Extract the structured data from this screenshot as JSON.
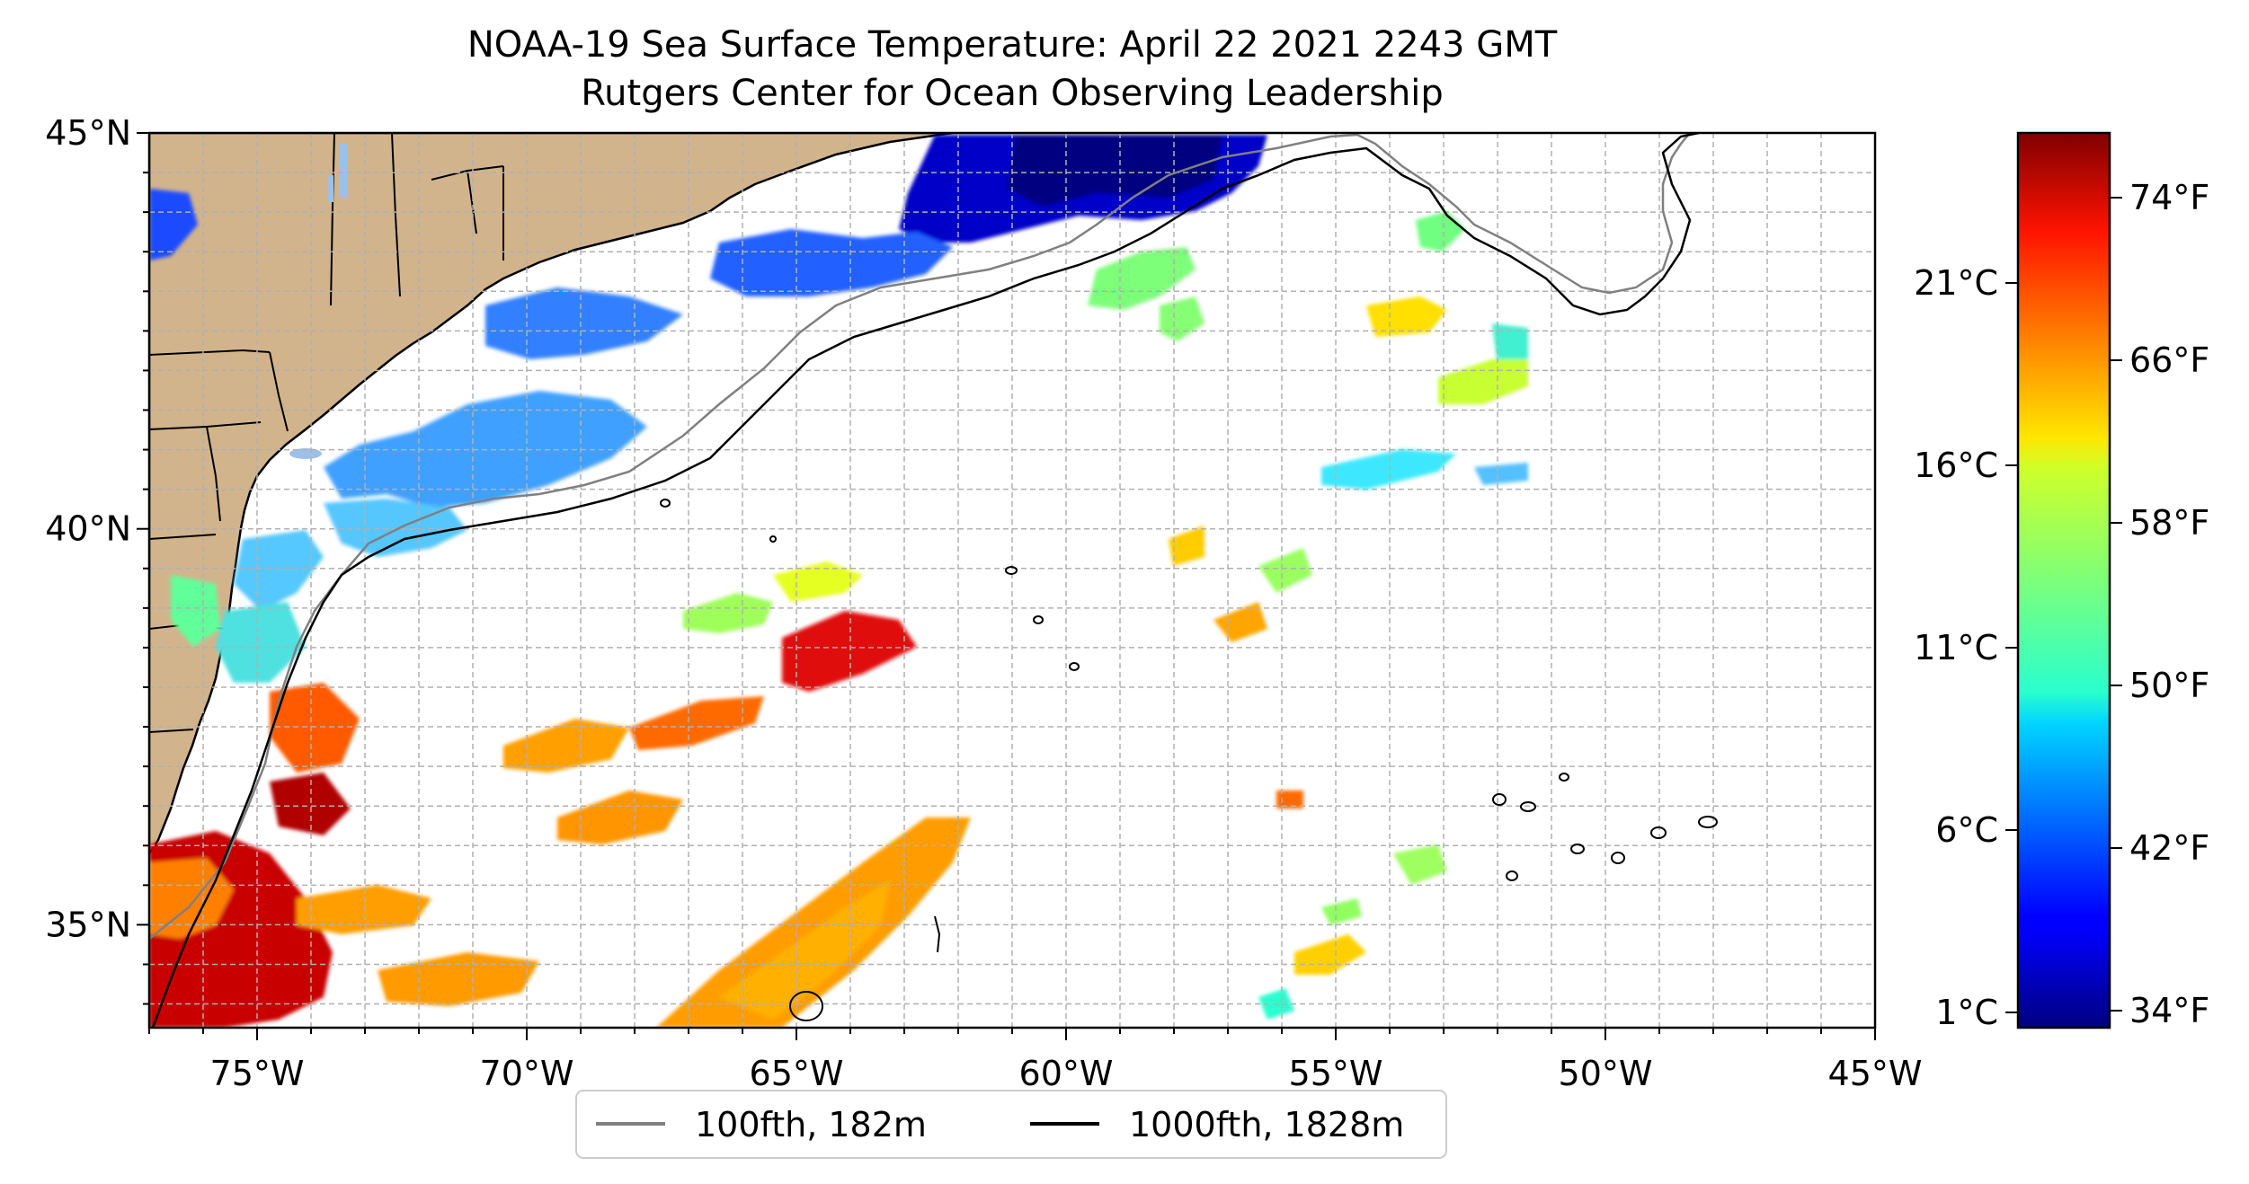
{
  "title": "NOAA-19 Sea Surface Temperature: April 22 2021 2243 GMT",
  "subtitle": "Rutgers Center for Ocean Observing Leadership",
  "map": {
    "lon_range": [
      -77,
      -45
    ],
    "lat_range": [
      33.7,
      45
    ],
    "lon_ticks": [
      "75°W",
      "70°W",
      "65°W",
      "60°W",
      "55°W",
      "50°W",
      "45°W"
    ],
    "lat_ticks": [
      "45°N",
      "40°N",
      "35°N"
    ],
    "gridlines": true,
    "gridline_style": "dashed",
    "land_color": "#d2b48c",
    "ocean_color": "#ffffff"
  },
  "colorbar": {
    "colormap": "jet",
    "celsius_ticks": [
      "1°C",
      "6°C",
      "11°C",
      "16°C",
      "21°C"
    ],
    "fahrenheit_ticks": [
      "34°F",
      "42°F",
      "50°F",
      "58°F",
      "66°F",
      "74°F"
    ]
  },
  "legend": {
    "placement": "bottom-center",
    "items": [
      {
        "label": "100fth, 182m",
        "color": "#808080"
      },
      {
        "label": "1000fth, 1828m",
        "color": "#000000"
      }
    ]
  }
}
